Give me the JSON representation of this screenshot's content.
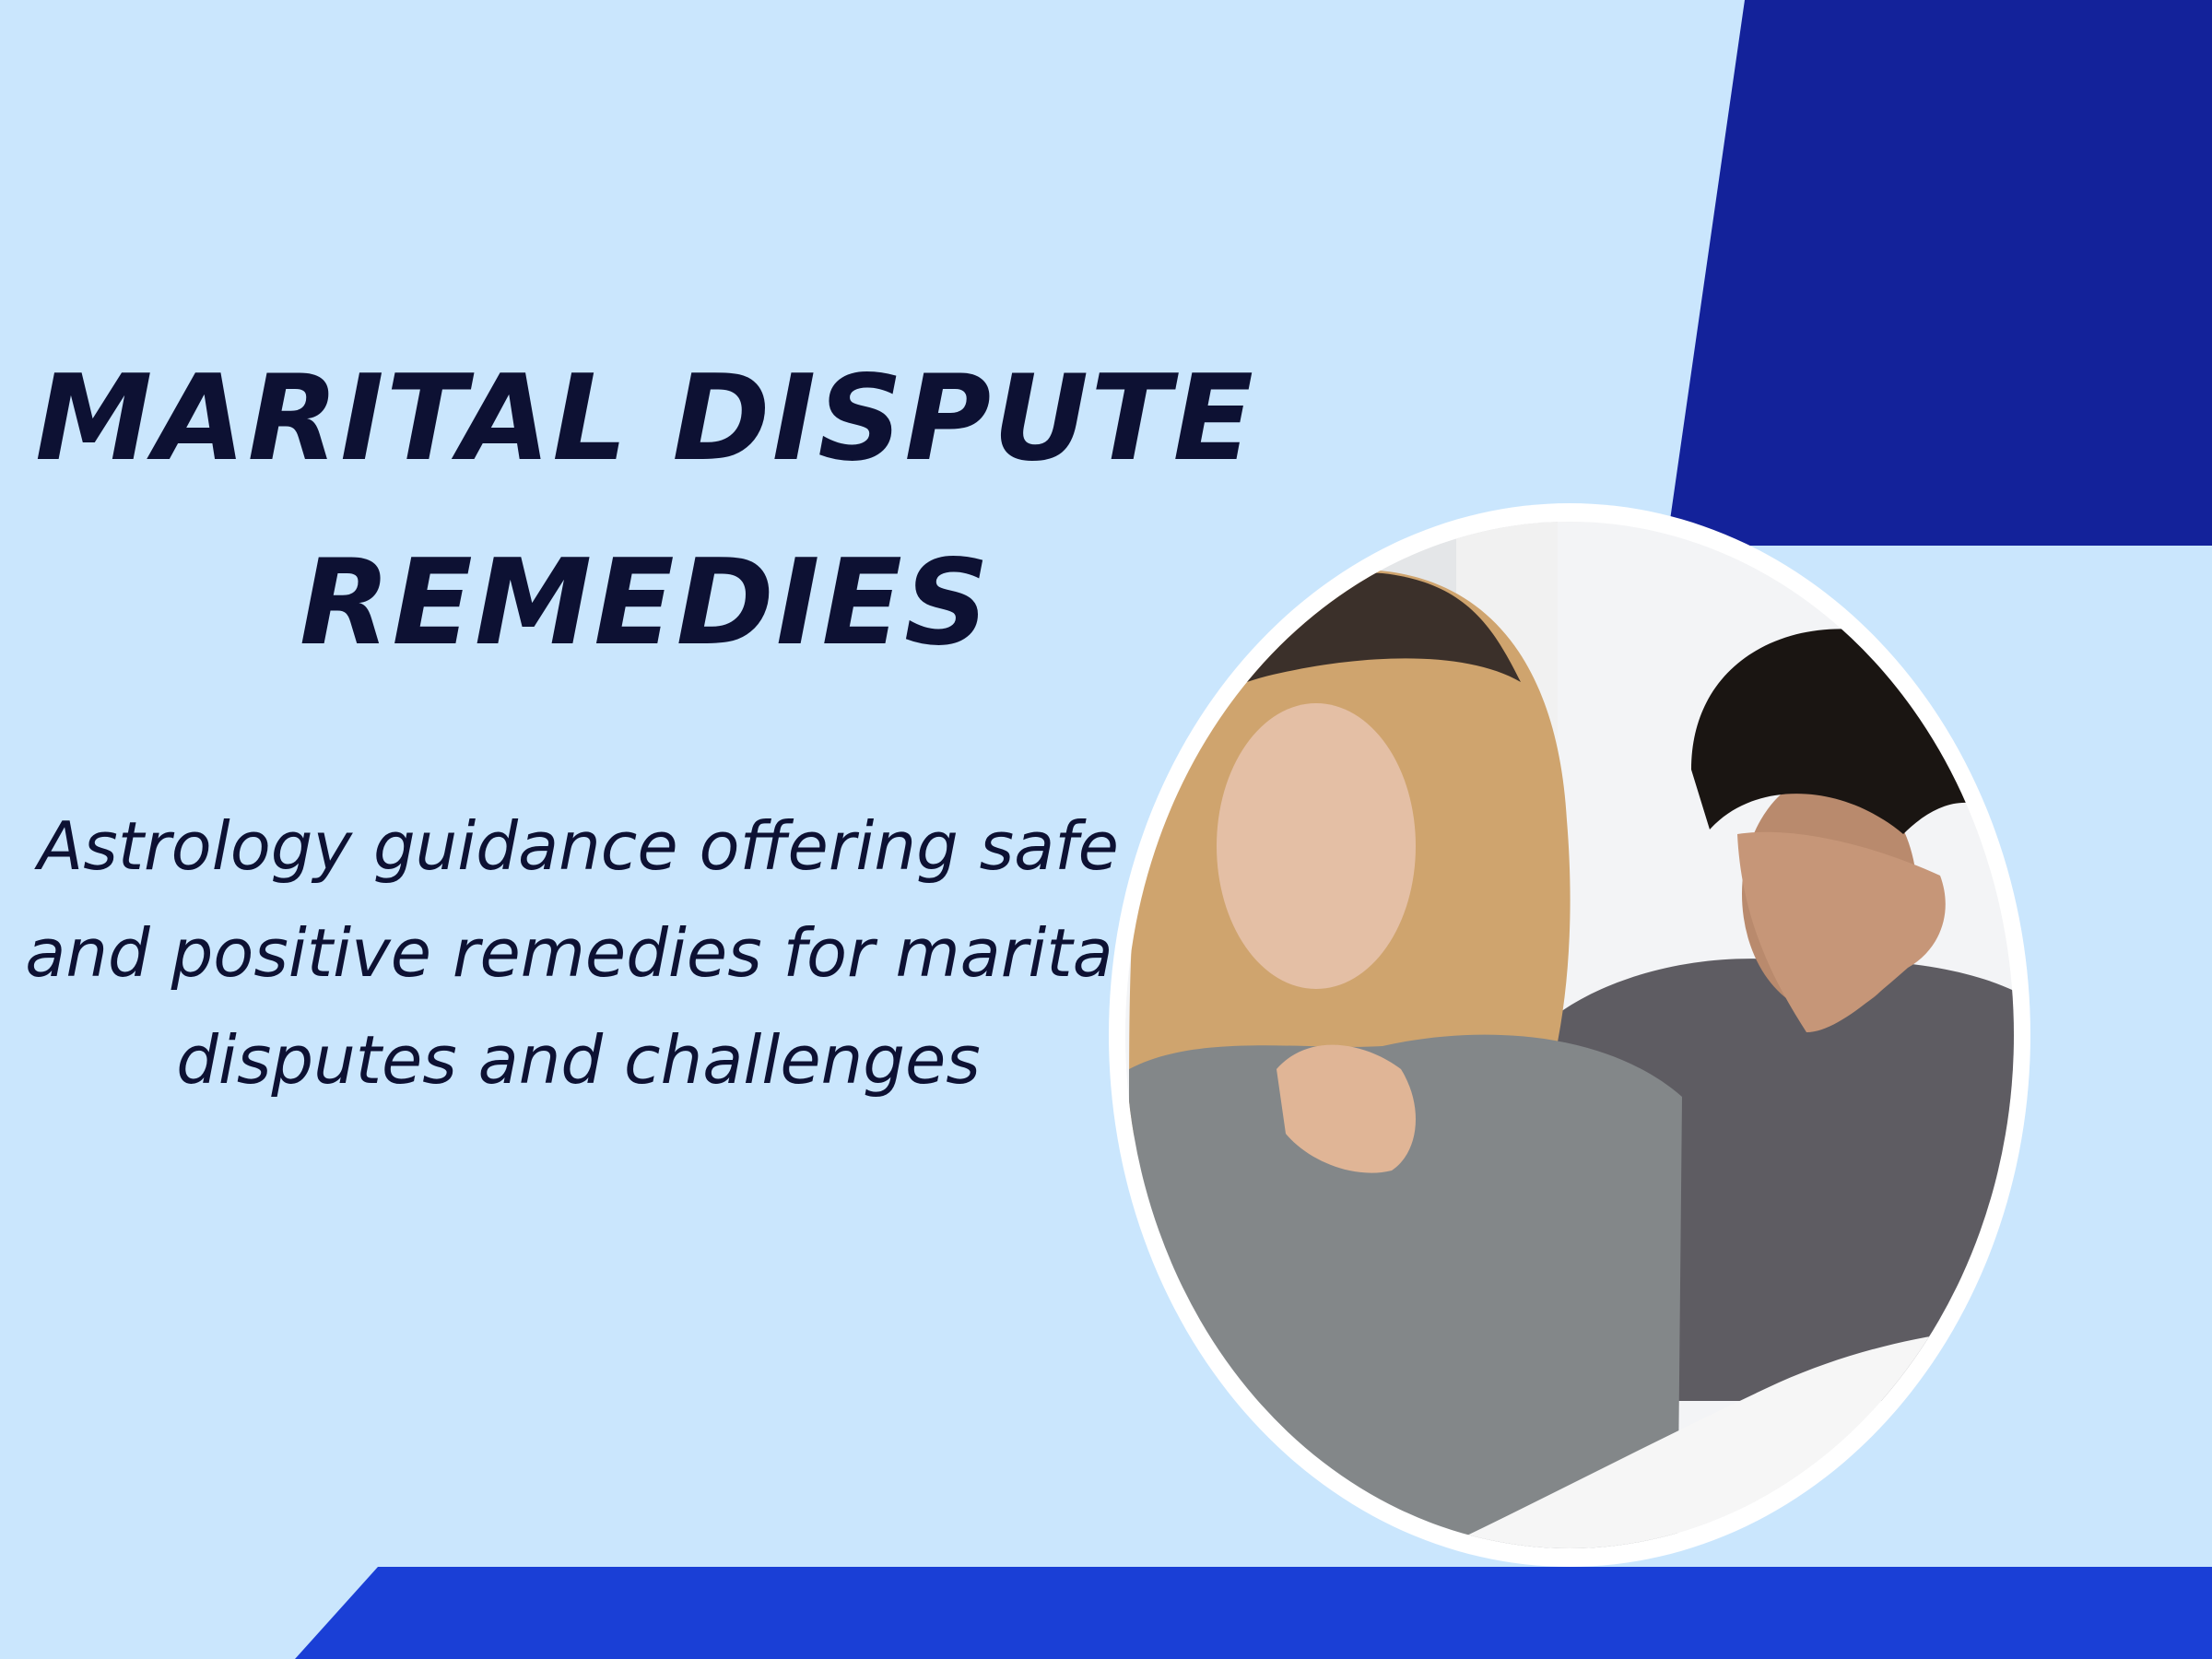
{
  "banner": {
    "title_line_1": "MARITAL DISPUTE",
    "title_line_2": "REMEDIES",
    "subtitle": "Astrology guidance offering safe and positive remedies for marital disputes and challenges"
  },
  "colors": {
    "background": "#cae6fd",
    "dark_panel": "#13229a",
    "bottom_bar": "#1a3fd6",
    "title_text": "#0d1133",
    "photo_frame": "#ffffff"
  }
}
